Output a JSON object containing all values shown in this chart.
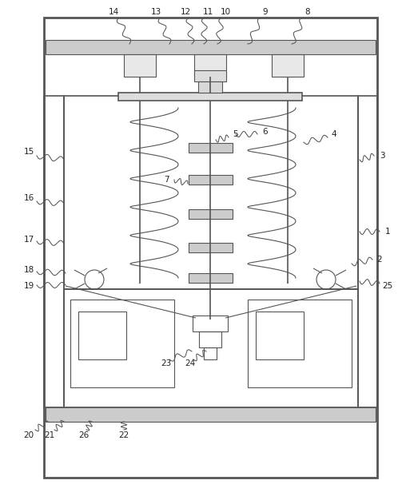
{
  "bg_color": "#ffffff",
  "line_color": "#555555",
  "label_color": "#222222",
  "fig_width": 4.98,
  "fig_height": 6.31,
  "dpi": 100
}
